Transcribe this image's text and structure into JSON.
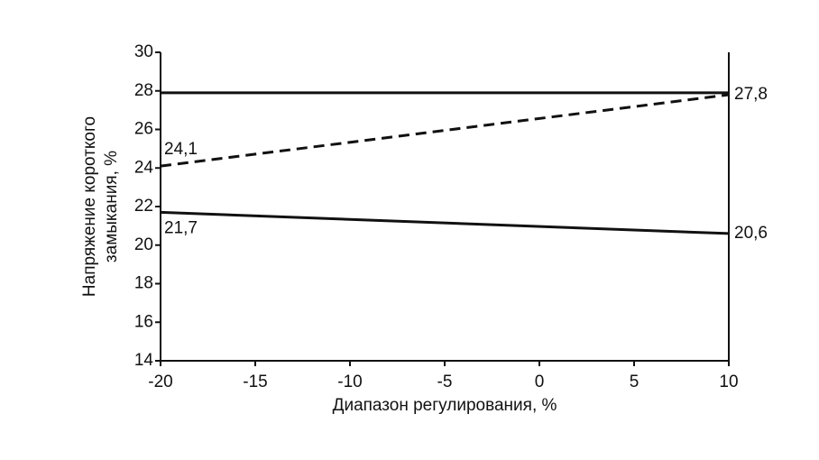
{
  "chart_data": {
    "type": "line",
    "xlabel": "Диапазон регулирования, %",
    "ylabel": [
      "Напряжение короткого",
      "замыкания, %"
    ],
    "x": [
      -20,
      10
    ],
    "series": [
      {
        "color": "#111111",
        "dashed": false,
        "values": [
          27.9,
          27.9
        ]
      },
      {
        "color": "#111111",
        "dashed": true,
        "values": [
          24.1,
          27.8
        ],
        "value_labels": [
          "24,1",
          "27,8"
        ]
      },
      {
        "color": "#111111",
        "dashed": false,
        "values": [
          21.7,
          20.6
        ],
        "value_labels": [
          "21,7",
          "20,6"
        ]
      }
    ],
    "xlim": [
      -20,
      10
    ],
    "xticks": [
      -20,
      -15,
      -10,
      -5,
      0,
      5,
      10
    ],
    "ylim": [
      14,
      30
    ],
    "yticks": [
      14,
      16,
      18,
      20,
      22,
      24,
      26,
      28,
      30
    ]
  }
}
